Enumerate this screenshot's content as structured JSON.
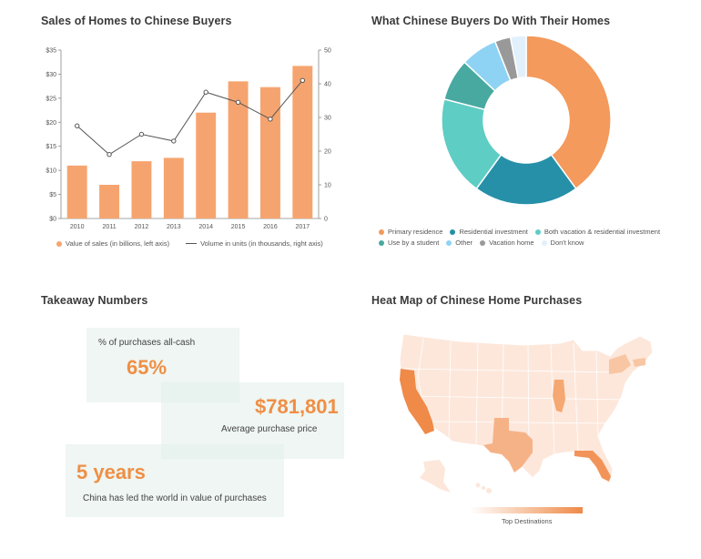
{
  "titles": {
    "bar": "Sales of Homes to Chinese Buyers",
    "donut": "What Chinese Buyers Do With Their Homes",
    "takeaway": "Takeaway Numbers",
    "map": "Heat Map of Chinese Home Purchases"
  },
  "colors": {
    "bar": "#f6a46f",
    "line": "#555555",
    "accent": "#ef8f45"
  },
  "chart_data": [
    {
      "type": "bar",
      "title": "Sales of Homes to Chinese Buyers",
      "categories": [
        "2010",
        "2011",
        "2012",
        "2013",
        "2014",
        "2015",
        "2016",
        "2017"
      ],
      "y_ticks_left": [
        "$0",
        "$5",
        "$10",
        "$15",
        "$20",
        "$25",
        "$30",
        "$35"
      ],
      "y_ticks_right": [
        "0",
        "10",
        "20",
        "30",
        "40",
        "50"
      ],
      "ylim_left": [
        0,
        35
      ],
      "ylim_right": [
        0,
        50
      ],
      "series": [
        {
          "name": "Value of sales (in billions, left axis)",
          "type": "bar",
          "axis": "left",
          "values": [
            11.0,
            7.0,
            11.9,
            12.6,
            22.0,
            28.5,
            27.3,
            31.7
          ]
        },
        {
          "name": "Volume in units (in thousands, right axis)",
          "type": "line",
          "axis": "right",
          "values": [
            27.5,
            19.0,
            25.0,
            23.0,
            37.5,
            34.5,
            29.5,
            41.0
          ]
        }
      ],
      "legend": [
        "Value of sales (in billions, left axis)",
        "Volume in units (in thousands, right axis)"
      ],
      "legend_position": "bottom"
    },
    {
      "type": "pie",
      "subtype": "donut",
      "title": "What Chinese Buyers Do With Their Homes",
      "labels": [
        "Primary residence",
        "Residential investment",
        "Both vacation & residential investment",
        "Use by a student",
        "Other",
        "Vacation home",
        "Don't know"
      ],
      "values": [
        40,
        20,
        19,
        8,
        7,
        3,
        3
      ],
      "colors": [
        "#f39a5c",
        "#2690a8",
        "#5ecdc4",
        "#48a9a1",
        "#8ed3f3",
        "#999999",
        "#e1f0fb"
      ],
      "legend_position": "bottom"
    }
  ],
  "takeaways": {
    "cash_label": "% of purchases all-cash",
    "cash_value": "65%",
    "price_value": "$781,801",
    "price_label": "Average purchase price",
    "years_value": "5 years",
    "years_label": "China has led the world in value of purchases"
  },
  "map": {
    "legend_label": "Top Destinations",
    "highlighted_states": [
      "California",
      "Texas",
      "Florida",
      "Illinois",
      "New York",
      "Massachusetts"
    ]
  }
}
